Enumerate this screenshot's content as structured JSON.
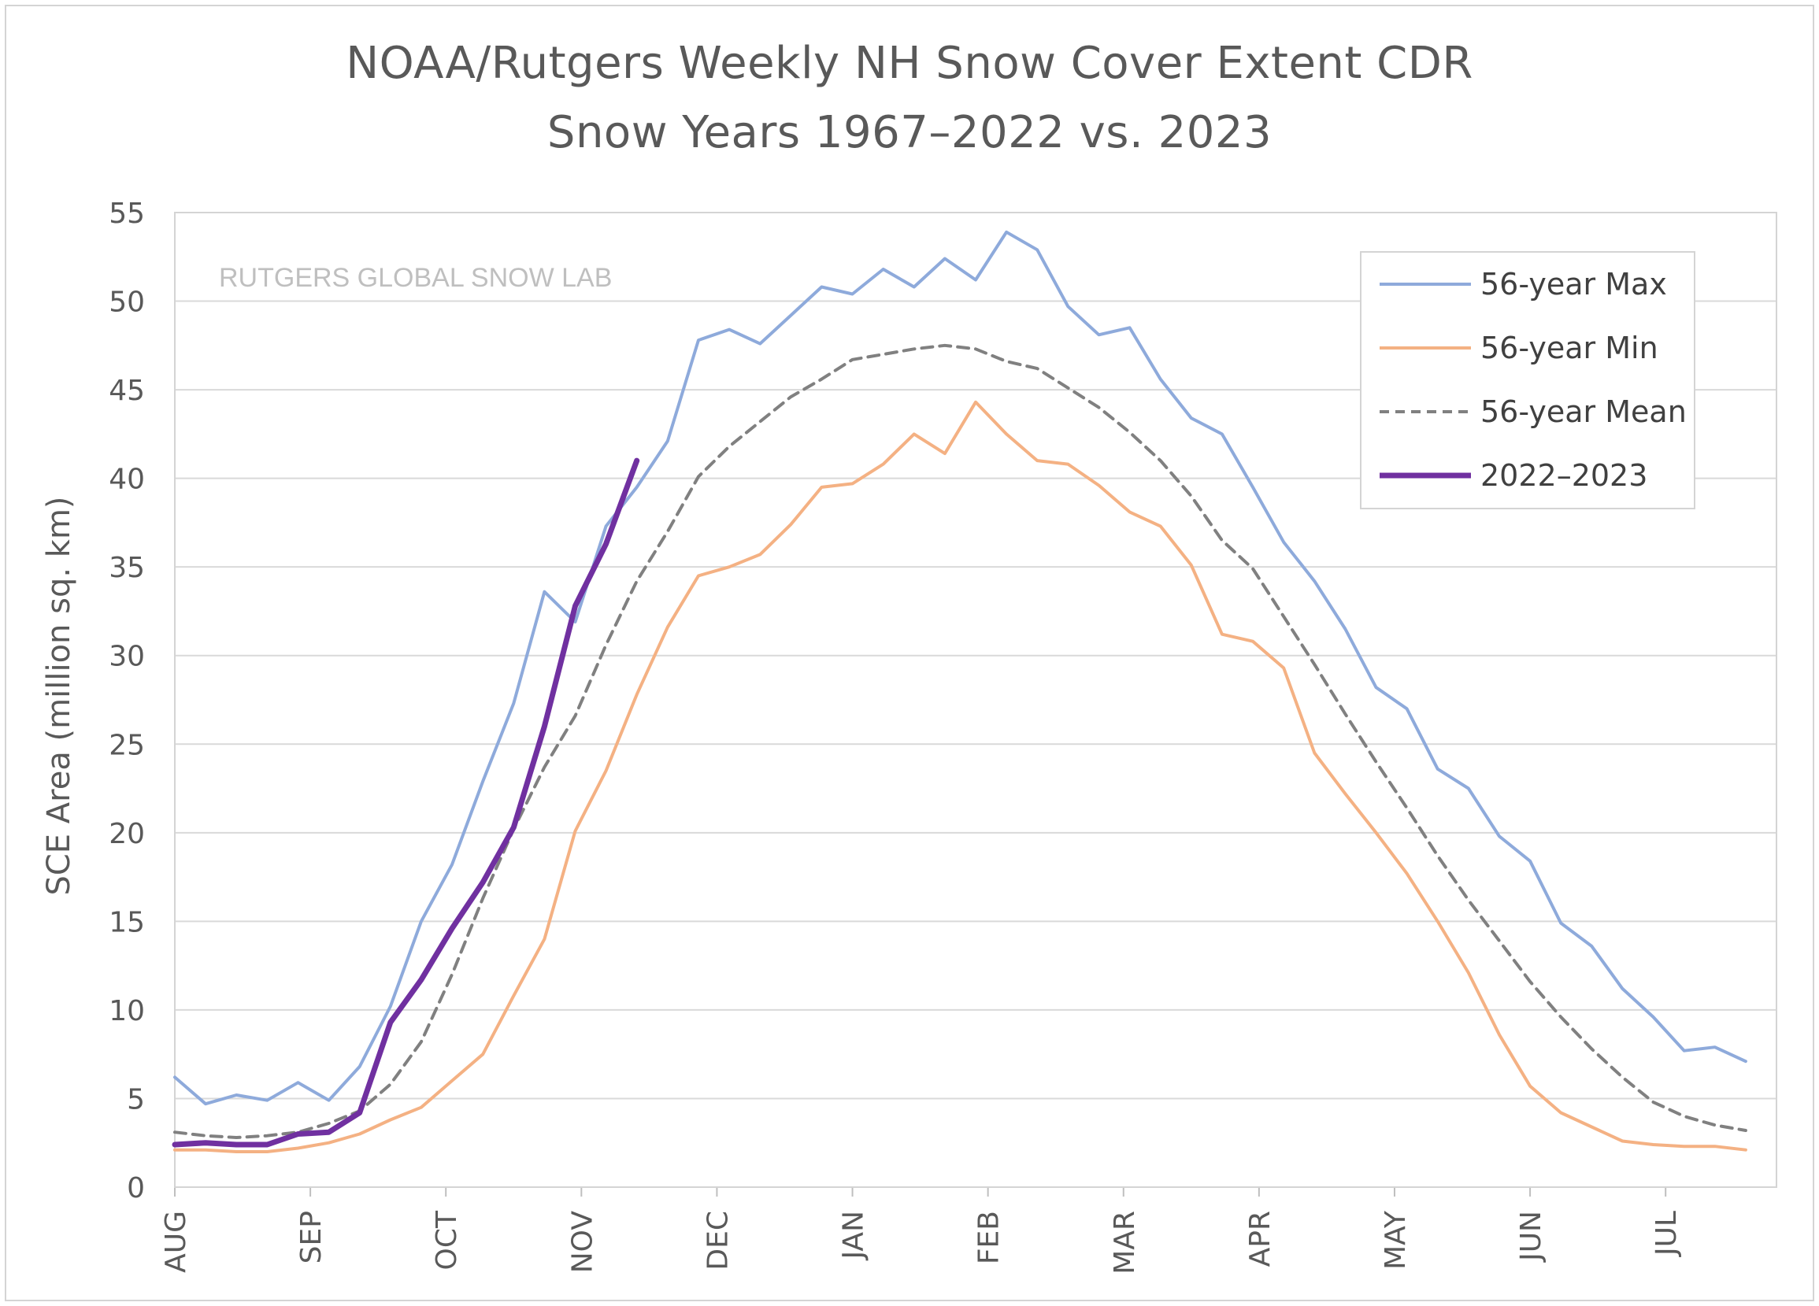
{
  "chart_data": {
    "type": "line",
    "title": "NOAA/Rutgers Weekly NH Snow Cover Extent CDR",
    "subtitle": "Snow Years 1967–2022 vs. 2023",
    "ylabel": "SCE Area (million sq. km)",
    "xlabel": "",
    "watermark": "RUTGERS GLOBAL SNOW LAB",
    "ylim": [
      0,
      55
    ],
    "yticks": [
      0,
      5,
      10,
      15,
      20,
      25,
      30,
      35,
      40,
      45,
      50,
      55
    ],
    "x_week_range": [
      1,
      53
    ],
    "month_labels": [
      "AUG",
      "SEP",
      "OCT",
      "NOV",
      "DEC",
      "JAN",
      "FEB",
      "MAR",
      "APR",
      "MAY",
      "JUN",
      "JUL"
    ],
    "month_start_weeks": [
      1,
      5.4,
      9.8,
      14.2,
      18.6,
      23,
      27.4,
      31.8,
      36.2,
      40.6,
      45,
      49.4
    ],
    "grid": "horizontal",
    "legend_position": "top-right",
    "series": [
      {
        "name": "56-year Max",
        "color": "#8eaadb",
        "style": "solid",
        "values": [
          6.2,
          4.7,
          5.2,
          4.9,
          5.9,
          4.9,
          6.8,
          10.2,
          15.0,
          18.2,
          22.9,
          27.3,
          33.6,
          31.9,
          37.3,
          39.5,
          42.1,
          47.8,
          48.4,
          47.6,
          49.2,
          50.8,
          50.4,
          51.8,
          50.8,
          52.4,
          51.2,
          53.9,
          52.9,
          49.7,
          48.1,
          48.5,
          45.6,
          43.4,
          42.5,
          39.5,
          36.4,
          34.2,
          31.5,
          28.2,
          27.0,
          23.6,
          22.5,
          19.8,
          18.4,
          14.9,
          13.6,
          11.2,
          9.6,
          7.7,
          7.9,
          7.1
        ]
      },
      {
        "name": "56-year Min",
        "color": "#f4b183",
        "style": "solid",
        "values": [
          2.1,
          2.1,
          2.0,
          2.0,
          2.2,
          2.5,
          3.0,
          3.8,
          4.5,
          6.0,
          7.5,
          10.8,
          14.0,
          20.1,
          23.5,
          27.8,
          31.6,
          34.5,
          35.0,
          35.7,
          37.4,
          39.5,
          39.7,
          40.8,
          42.5,
          41.4,
          44.3,
          42.5,
          41.0,
          40.8,
          39.6,
          38.1,
          37.3,
          35.1,
          31.2,
          30.8,
          29.3,
          24.5,
          22.2,
          20.0,
          17.7,
          15.0,
          12.1,
          8.6,
          5.7,
          4.2,
          3.4,
          2.6,
          2.4,
          2.3,
          2.3,
          2.1
        ]
      },
      {
        "name": "56-year Mean",
        "color": "#808080",
        "style": "dashed",
        "values": [
          3.1,
          2.9,
          2.8,
          2.9,
          3.1,
          3.6,
          4.3,
          5.8,
          8.2,
          12.0,
          16.3,
          20.2,
          23.7,
          26.6,
          30.6,
          34.2,
          37.0,
          40.1,
          41.8,
          43.2,
          44.6,
          45.6,
          46.7,
          47.0,
          47.3,
          47.5,
          47.3,
          46.6,
          46.2,
          45.1,
          44.0,
          42.6,
          41.0,
          39.0,
          36.5,
          34.9,
          32.2,
          29.5,
          26.7,
          24.0,
          21.4,
          18.7,
          16.2,
          13.9,
          11.6,
          9.6,
          7.8,
          6.2,
          4.8,
          4.0,
          3.5,
          3.2
        ]
      },
      {
        "name": "2022–2023",
        "color": "#7030a0",
        "style": "solid-bold",
        "values": [
          2.4,
          2.5,
          2.4,
          2.4,
          3.0,
          3.1,
          4.2,
          9.3,
          11.7,
          14.6,
          17.2,
          20.3,
          26.0,
          32.8,
          36.3,
          41.0
        ]
      }
    ]
  }
}
